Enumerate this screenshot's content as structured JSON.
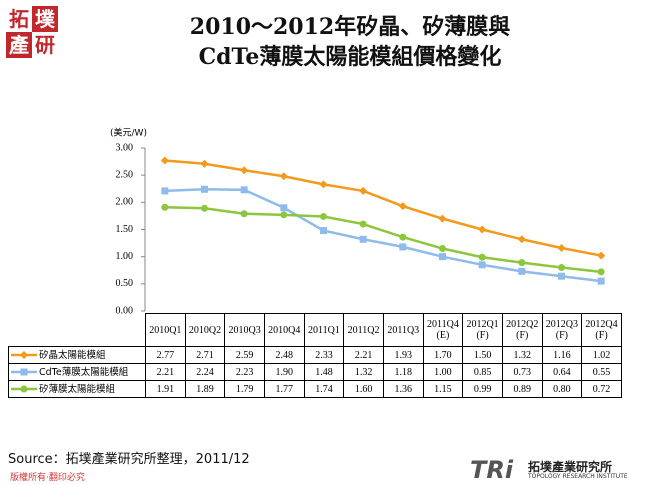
{
  "chart_data": {
    "type": "line",
    "title": "2010～2012年矽晶、矽薄膜與\nCdTe薄膜太陽能模組價格變化",
    "y_label": "(美元/W)",
    "categories": [
      "2010Q1",
      "2010Q2",
      "2010Q3",
      "2010Q4",
      "2011Q1",
      "2011Q2",
      "2011Q3",
      "2011Q4\n(E)",
      "2012Q1\n(F)",
      "2012Q2\n(F)",
      "2012Q3\n(F)",
      "2012Q4\n(F)"
    ],
    "series": [
      {
        "name": "矽晶太陽能模組",
        "color": "#f39a1d",
        "marker": "diamond",
        "values": [
          2.77,
          2.71,
          2.59,
          2.48,
          2.33,
          2.21,
          1.93,
          1.7,
          1.5,
          1.32,
          1.16,
          1.02
        ],
        "value_labels": [
          "2.77",
          "2.71",
          "2.59",
          "2.48",
          "2.33",
          "2.21",
          "1.93",
          "1.70",
          "1.50",
          "1.32",
          "1.16",
          "1.02"
        ]
      },
      {
        "name": "CdTe薄膜太陽能模組",
        "color": "#8fbbea",
        "marker": "square",
        "values": [
          2.21,
          2.24,
          2.23,
          1.9,
          1.48,
          1.32,
          1.18,
          1.0,
          0.85,
          0.73,
          0.64,
          0.55
        ],
        "value_labels": [
          "2.21",
          "2.24",
          "2.23",
          "1.90",
          "1.48",
          "1.32",
          "1.18",
          "1.00",
          "0.85",
          "0.73",
          "0.64",
          "0.55"
        ]
      },
      {
        "name": "矽薄膜太陽能模組",
        "color": "#8cc63e",
        "marker": "circle",
        "values": [
          1.91,
          1.89,
          1.79,
          1.77,
          1.74,
          1.6,
          1.36,
          1.15,
          0.99,
          0.89,
          0.8,
          0.72
        ],
        "value_labels": [
          "1.91",
          "1.89",
          "1.79",
          "1.77",
          "1.74",
          "1.60",
          "1.36",
          "1.15",
          "0.99",
          "0.89",
          "0.80",
          "0.72"
        ]
      }
    ],
    "ylim": [
      0,
      3
    ],
    "yticks": [
      {
        "value": 0,
        "label": "0.00"
      },
      {
        "value": 0.5,
        "label": "0.50"
      },
      {
        "value": 1,
        "label": "1.00"
      },
      {
        "value": 1.5,
        "label": "1.50"
      },
      {
        "value": 2,
        "label": "2.00"
      },
      {
        "value": 2.5,
        "label": "2.50"
      },
      {
        "value": 3,
        "label": "3.00"
      }
    ],
    "source": "Source：拓墣產業研究所整理，2011/12"
  },
  "header_logo": [
    "拓",
    "墣",
    "產",
    "研"
  ],
  "footer_logo": {
    "mark": "TRi",
    "name": "拓墣產業研究所",
    "english": "TOPOLOGY RESEARCH INSTITUTE"
  },
  "copyright": "版權所有‧翻印必究"
}
